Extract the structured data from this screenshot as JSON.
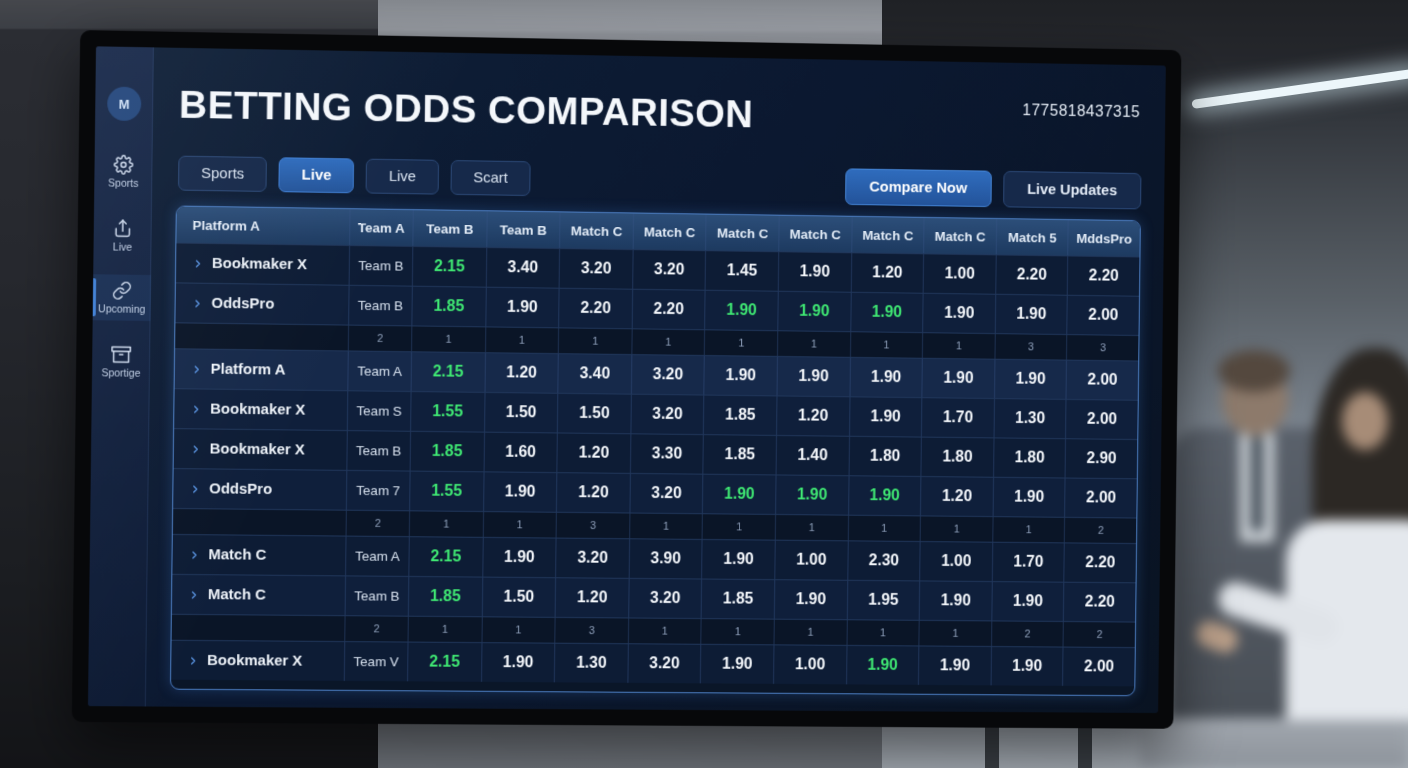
{
  "screen": {
    "logo_letter": "M",
    "title": "BETTING ODDS COMPARISON",
    "session_id": "1775818437315",
    "sidebar": {
      "items": [
        {
          "id": "sports",
          "label": "Sports",
          "icon": "gear",
          "active": false
        },
        {
          "id": "live",
          "label": "Live",
          "icon": "upload",
          "active": false
        },
        {
          "id": "upcoming",
          "label": "Upcoming",
          "icon": "link",
          "active": true
        },
        {
          "id": "sportige",
          "label": "Sportige",
          "icon": "box",
          "active": false
        }
      ]
    },
    "tabs": [
      {
        "label": "Sports",
        "active": false
      },
      {
        "label": "Live",
        "active": true
      },
      {
        "label": "Live",
        "active": false
      },
      {
        "label": "Scart",
        "active": false
      }
    ],
    "actions": [
      {
        "label": "Compare Now",
        "style": "primary"
      },
      {
        "label": "Live Updates",
        "style": "secondary"
      }
    ],
    "colors": {
      "accent_blue": "#2a63b0",
      "highlight_green": "#3fe873",
      "screen_bg": "#0b1830",
      "table_border": "#4b7cc0"
    },
    "table": {
      "columns": [
        "Platform A",
        "Team A",
        "Team B",
        "Team B",
        "Match C",
        "Match C",
        "Match C",
        "Match C",
        "Match C",
        "Match C",
        "Match 5",
        "MddsPro"
      ],
      "rows": [
        {
          "type": "data",
          "name": "Bookmaker X",
          "team": "Team B",
          "odds": [
            "2.15",
            "3.40",
            "3.20",
            "3.20",
            "1.45",
            "1.90",
            "1.20",
            "1.00",
            "2.20",
            "2.20"
          ],
          "green": [
            0
          ]
        },
        {
          "type": "data",
          "name": "OddsPro",
          "team": "Team B",
          "odds": [
            "1.85",
            "1.90",
            "2.20",
            "2.20",
            "1.90",
            "1.90",
            "1.90",
            "1.90",
            "1.90",
            "2.00"
          ],
          "green": [
            0,
            4,
            5,
            6
          ]
        },
        {
          "type": "summary",
          "values": [
            "2",
            "1",
            "1",
            "1",
            "1",
            "1",
            "1",
            "1",
            "1",
            "3",
            "3"
          ]
        },
        {
          "type": "data",
          "name": "Platform A",
          "team": "Team A",
          "odds": [
            "2.15",
            "1.20",
            "3.40",
            "3.20",
            "1.90",
            "1.90",
            "1.90",
            "1.90",
            "1.90",
            "2.00"
          ],
          "green": [
            0
          ],
          "highlight": true
        },
        {
          "type": "data",
          "name": "Bookmaker X",
          "team": "Team S",
          "odds": [
            "1.55",
            "1.50",
            "1.50",
            "3.20",
            "1.85",
            "1.20",
            "1.90",
            "1.70",
            "1.30",
            "2.00"
          ],
          "green": [
            0
          ]
        },
        {
          "type": "data",
          "name": "Bookmaker X",
          "team": "Team B",
          "odds": [
            "1.85",
            "1.60",
            "1.20",
            "3.30",
            "1.85",
            "1.40",
            "1.80",
            "1.80",
            "1.80",
            "2.90"
          ],
          "green": [
            0
          ]
        },
        {
          "type": "data",
          "name": "OddsPro",
          "team": "Team 7",
          "odds": [
            "1.55",
            "1.90",
            "1.20",
            "3.20",
            "1.90",
            "1.90",
            "1.90",
            "1.20",
            "1.90",
            "2.00"
          ],
          "green": [
            0,
            4,
            5,
            6
          ]
        },
        {
          "type": "summary",
          "values": [
            "2",
            "1",
            "1",
            "3",
            "1",
            "1",
            "1",
            "1",
            "1",
            "1",
            "2"
          ]
        },
        {
          "type": "data",
          "name": "Match C",
          "team": "Team A",
          "odds": [
            "2.15",
            "1.90",
            "3.20",
            "3.90",
            "1.90",
            "1.00",
            "2.30",
            "1.00",
            "1.70",
            "2.20"
          ],
          "green": [
            0
          ]
        },
        {
          "type": "data",
          "name": "Match C",
          "team": "Team B",
          "odds": [
            "1.85",
            "1.50",
            "1.20",
            "3.20",
            "1.85",
            "1.90",
            "1.95",
            "1.90",
            "1.90",
            "2.20"
          ],
          "green": [
            0
          ]
        },
        {
          "type": "summary",
          "values": [
            "2",
            "1",
            "1",
            "3",
            "1",
            "1",
            "1",
            "1",
            "1",
            "2",
            "2"
          ]
        },
        {
          "type": "data",
          "name": "Bookmaker X",
          "team": "Team V",
          "odds": [
            "2.15",
            "1.90",
            "1.30",
            "3.20",
            "1.90",
            "1.00",
            "1.90",
            "1.90",
            "1.90",
            "2.00"
          ],
          "green": [
            0,
            6
          ]
        }
      ]
    }
  }
}
